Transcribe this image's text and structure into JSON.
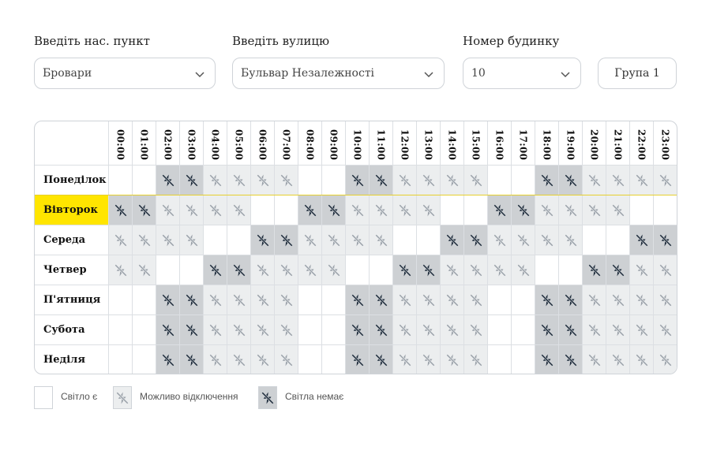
{
  "form": {
    "city_label": "Введіть нас. пункт",
    "city_value": "Бровари",
    "street_label": "Введіть вулицю",
    "street_value": "Бульвар Незалежності",
    "house_label": "Номер будинку",
    "house_value": "10",
    "group_button": "Група 1"
  },
  "schedule": {
    "hours": [
      "00:00",
      "01:00",
      "02:00",
      "03:00",
      "04:00",
      "05:00",
      "06:00",
      "07:00",
      "08:00",
      "09:00",
      "10:00",
      "11:00",
      "12:00",
      "13:00",
      "14:00",
      "15:00",
      "16:00",
      "17:00",
      "18:00",
      "19:00",
      "20:00",
      "21:00",
      "22:00",
      "23:00"
    ],
    "selected_day": "Вівторок",
    "days": [
      {
        "name": "Понеділок",
        "cells": "nnoommmmnnoommmmnnoommmm"
      },
      {
        "name": "Вівторок",
        "cells": "oommmmnnoommmmnnoommmmnn"
      },
      {
        "name": "Середа",
        "cells": "mmmmnnoommmmnnoommmmnnoo"
      },
      {
        "name": "Четвер",
        "cells": "mmnnoommmmnnoommmmnnoomm"
      },
      {
        "name": "П'ятниця",
        "cells": "nnoommmmnnoommmmnnoommmm"
      },
      {
        "name": "Субота",
        "cells": "nnoommmmnnoommmmnnoommmm"
      },
      {
        "name": "Неділя",
        "cells": "nnoommmmnnoommmmnnoommmm"
      }
    ],
    "cell_codes": {
      "n": "Світло є",
      "m": "Можливо відключення",
      "o": "Світла немає"
    }
  },
  "legend": {
    "on_label": "Світло є",
    "maybe_label": "Можливо відключення",
    "off_label": "Світла немає"
  },
  "colors": {
    "selected_day_bg": "#ffe500",
    "maybe_bg": "#eceeef",
    "off_bg": "#cdd0d3",
    "maybe_icon": "#9aa1a9",
    "off_icon": "#1c2a3a"
  },
  "icons": {
    "maybe": "lightning-slash-icon-light",
    "off": "lightning-slash-icon-dark",
    "select_arrow": "chevron-down-icon"
  }
}
